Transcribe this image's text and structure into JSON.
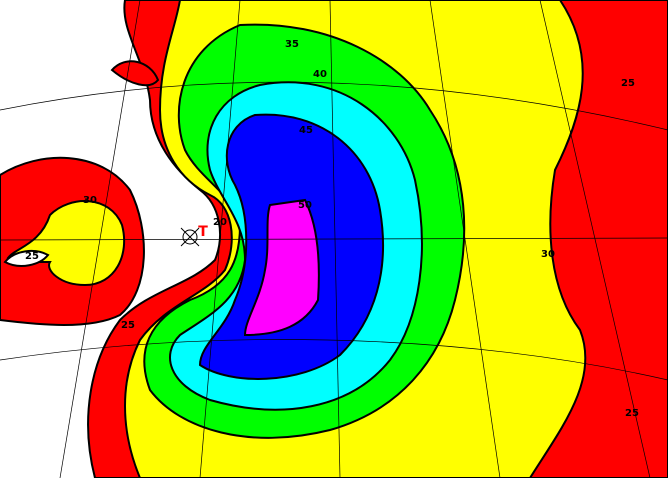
{
  "contour_labels": [
    "35",
    "40",
    "45",
    "50",
    "25",
    "30",
    "30",
    "25",
    "25",
    "25",
    "20"
  ],
  "marker": "T"
}
